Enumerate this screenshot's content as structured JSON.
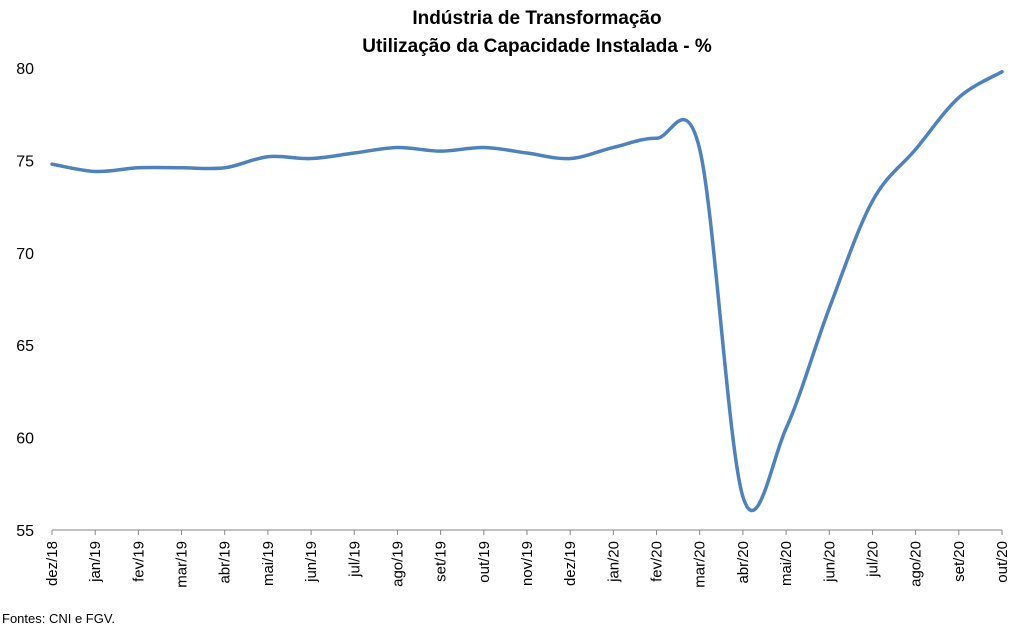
{
  "chart_data": {
    "type": "line",
    "title": "Indústria de Transformação",
    "subtitle": "Utilização da Capacidade Instalada - %",
    "xlabel": "",
    "ylabel": "",
    "ylim": [
      55,
      80
    ],
    "yticks": [
      "55",
      "60",
      "65",
      "70",
      "75",
      "80"
    ],
    "grid": false,
    "categories": [
      "dez/18",
      "jan/19",
      "fev/19",
      "mar/19",
      "abr/19",
      "mai/19",
      "jun/19",
      "jul/19",
      "ago/19",
      "set/19",
      "out/19",
      "nov/19",
      "dez/19",
      "jan/20",
      "fev/20",
      "mar/20",
      "abr/20",
      "mai/20",
      "jun/20",
      "jul/20",
      "ago/20",
      "set/20",
      "out/20"
    ],
    "series": [
      {
        "color": "#4F81BD",
        "values": [
          74.8,
          74.4,
          74.6,
          74.6,
          74.6,
          75.2,
          75.1,
          75.4,
          75.7,
          75.5,
          75.7,
          75.4,
          75.1,
          75.7,
          76.2,
          75.6,
          56.8,
          60.5,
          67.0,
          72.8,
          75.6,
          78.4,
          79.8
        ]
      }
    ]
  },
  "source": "Fontes: CNI e FGV."
}
